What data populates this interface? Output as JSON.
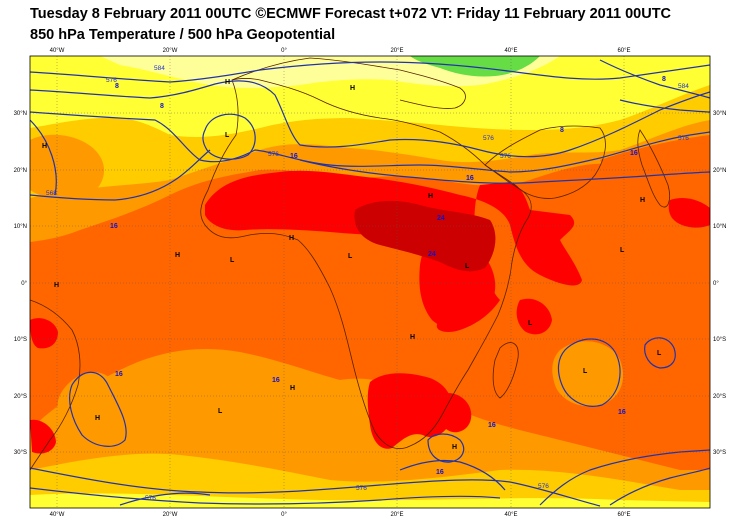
{
  "title": {
    "line1": "Tuesday 8 February 2011 00UTC ©ECMWF Forecast t+072 VT: Friday 11 February 2011 00UTC",
    "line2": "850 hPa Temperature / 500 hPa Geopotential"
  },
  "axes": {
    "lon_ticks": [
      "40°W",
      "20°W",
      "0°",
      "20°E",
      "40°E",
      "60°E"
    ],
    "lat_ticks_left": [
      "30°N",
      "20°N",
      "10°N",
      "0°",
      "10°S",
      "20°S",
      "30°S"
    ],
    "lat_ticks_right": [
      "30°N",
      "20°N",
      "10°N",
      "0°",
      "10°S",
      "20°S",
      "30°S"
    ]
  },
  "colors": {
    "pale_yellow": "#ffff99",
    "yellow": "#ffff33",
    "gold": "#ffcc00",
    "orange": "#ff9900",
    "dark_orange": "#ff6600",
    "red": "#ff0000",
    "dark_red": "#cc0000",
    "green": "#66dd44",
    "contour": "#2233aa",
    "coast": "#552200"
  },
  "pressure_centers": [
    "H",
    "H",
    "L",
    "H",
    "H",
    "H",
    "L",
    "H",
    "L",
    "H",
    "L",
    "H",
    "H",
    "L",
    "L",
    "H",
    "L",
    "L",
    "H",
    "L",
    "H"
  ],
  "temperature_labels": [
    "8",
    "8",
    "8",
    "8",
    "16",
    "16",
    "16",
    "16",
    "16",
    "16",
    "16",
    "16",
    "16",
    "24",
    "24"
  ],
  "geopotential_labels": [
    "576",
    "584",
    "576",
    "576",
    "584",
    "576",
    "568",
    "576",
    "576",
    "576",
    "576"
  ]
}
